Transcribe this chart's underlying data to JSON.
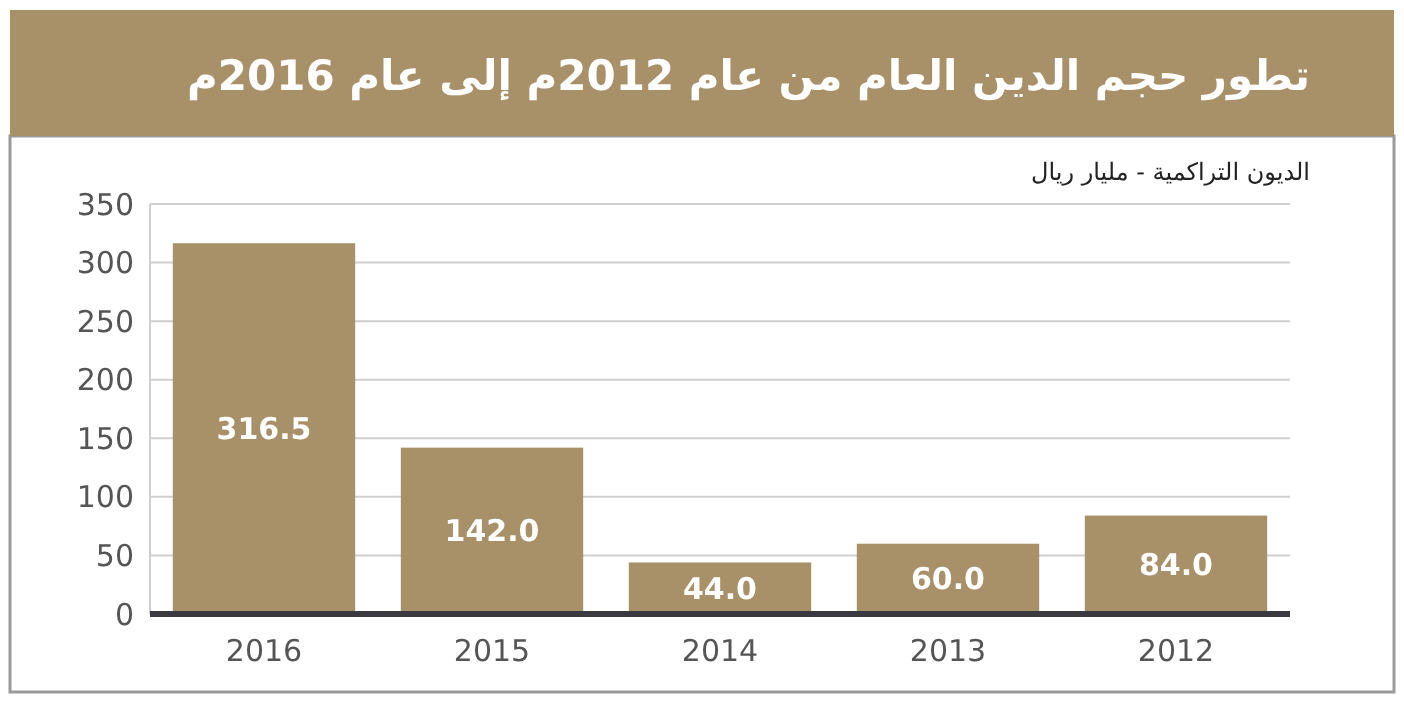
{
  "chart_data": {
    "type": "bar",
    "title": "تطور حجم الدين العام من عام 2012م إلى عام 2016م",
    "subtitle": "الديون التراكمية - مليار ريال",
    "categories": [
      "2016",
      "2015",
      "2014",
      "2013",
      "2012"
    ],
    "values": [
      316.5,
      142,
      44,
      60,
      84
    ],
    "value_labels": [
      "316.5",
      "142.0",
      "44.0",
      "60.0",
      "84.0"
    ],
    "color": "#a89068",
    "ylim": [
      0,
      350
    ],
    "yticks": [
      0,
      50,
      100,
      150,
      200,
      250,
      300,
      350
    ],
    "grid": "y"
  }
}
